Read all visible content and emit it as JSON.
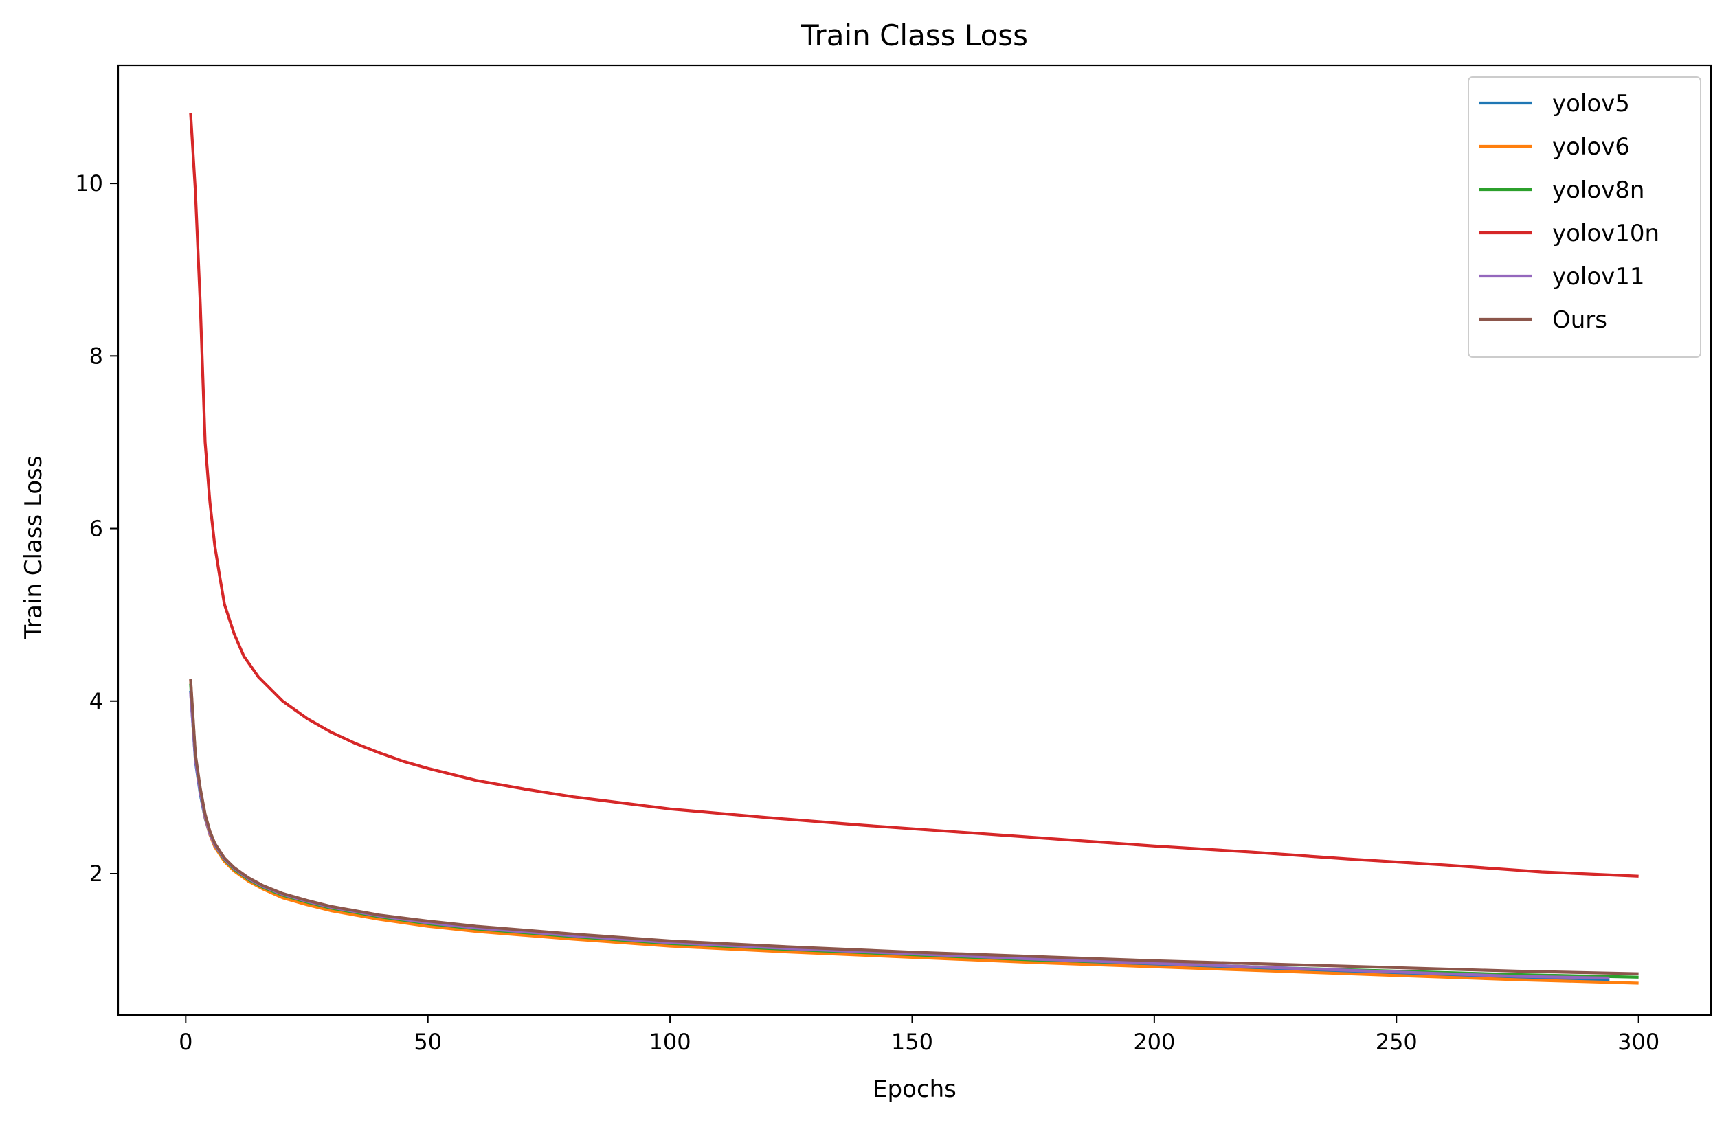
{
  "chart_data": {
    "type": "line",
    "title": "Train Class Loss",
    "xlabel": "Epochs",
    "ylabel": "Train Class Loss",
    "xlim": [
      -13.95,
      314.95
    ],
    "ylim": [
      0.36,
      11.37
    ],
    "xticks": [
      0,
      50,
      100,
      150,
      200,
      250,
      300
    ],
    "yticks": [
      2,
      4,
      6,
      8,
      10
    ],
    "grid": false,
    "legend_position": "top-right",
    "series": [
      {
        "name": "yolov5",
        "color": "#1f77b4",
        "x": [
          1,
          2,
          3,
          4,
          5,
          6,
          8,
          10,
          13,
          16,
          20,
          25,
          30,
          40,
          50,
          60,
          80,
          100,
          125,
          150,
          175,
          200,
          225,
          250,
          275,
          294
        ],
        "y": [
          4.12,
          3.3,
          2.92,
          2.64,
          2.45,
          2.32,
          2.16,
          2.05,
          1.94,
          1.85,
          1.76,
          1.68,
          1.61,
          1.51,
          1.43,
          1.37,
          1.28,
          1.2,
          1.13,
          1.06,
          1.0,
          0.95,
          0.9,
          0.85,
          0.8,
          0.77
        ]
      },
      {
        "name": "yolov6",
        "color": "#ff7f0e",
        "x": [
          1,
          2,
          3,
          4,
          5,
          6,
          8,
          10,
          13,
          16,
          20,
          25,
          30,
          40,
          50,
          60,
          80,
          100,
          125,
          150,
          175,
          200,
          225,
          250,
          275,
          300
        ],
        "y": [
          4.25,
          3.35,
          2.95,
          2.65,
          2.45,
          2.31,
          2.14,
          2.03,
          1.91,
          1.82,
          1.72,
          1.64,
          1.57,
          1.47,
          1.39,
          1.33,
          1.24,
          1.16,
          1.09,
          1.03,
          0.97,
          0.92,
          0.87,
          0.82,
          0.77,
          0.73
        ]
      },
      {
        "name": "yolov8n",
        "color": "#2ca02c",
        "x": [
          1,
          2,
          3,
          4,
          5,
          6,
          8,
          10,
          13,
          16,
          20,
          25,
          30,
          40,
          50,
          60,
          80,
          100,
          125,
          150,
          175,
          200,
          225,
          250,
          275,
          300
        ],
        "y": [
          4.2,
          3.36,
          2.97,
          2.67,
          2.47,
          2.33,
          2.16,
          2.05,
          1.93,
          1.84,
          1.75,
          1.67,
          1.6,
          1.5,
          1.42,
          1.36,
          1.27,
          1.19,
          1.12,
          1.06,
          1.0,
          0.96,
          0.91,
          0.87,
          0.83,
          0.8
        ]
      },
      {
        "name": "yolov10n",
        "color": "#d62728",
        "x": [
          1,
          2,
          3,
          4,
          5,
          6,
          7,
          8,
          10,
          12,
          15,
          20,
          25,
          30,
          35,
          40,
          45,
          50,
          60,
          70,
          80,
          90,
          100,
          120,
          140,
          160,
          180,
          200,
          220,
          240,
          260,
          280,
          300
        ],
        "y": [
          10.82,
          9.9,
          8.6,
          7.0,
          6.3,
          5.8,
          5.45,
          5.12,
          4.78,
          4.52,
          4.28,
          4.0,
          3.8,
          3.64,
          3.51,
          3.4,
          3.3,
          3.22,
          3.08,
          2.98,
          2.89,
          2.82,
          2.75,
          2.65,
          2.56,
          2.48,
          2.4,
          2.32,
          2.25,
          2.17,
          2.1,
          2.02,
          1.97
        ]
      },
      {
        "name": "yolov11",
        "color": "#9467bd",
        "x": [
          1,
          2,
          3,
          4,
          5,
          6,
          8,
          10,
          13,
          16,
          20,
          25,
          30,
          40,
          50,
          60,
          80,
          100,
          125,
          150,
          175,
          200,
          225,
          250,
          275,
          294
        ],
        "y": [
          4.1,
          3.32,
          2.94,
          2.66,
          2.46,
          2.33,
          2.17,
          2.06,
          1.94,
          1.85,
          1.76,
          1.68,
          1.61,
          1.51,
          1.43,
          1.37,
          1.28,
          1.2,
          1.13,
          1.07,
          1.01,
          0.96,
          0.91,
          0.86,
          0.81,
          0.79
        ]
      },
      {
        "name": "Ours",
        "color": "#8c564b",
        "x": [
          1,
          2,
          3,
          4,
          5,
          6,
          8,
          10,
          13,
          16,
          20,
          25,
          30,
          40,
          50,
          60,
          80,
          100,
          125,
          150,
          175,
          200,
          225,
          250,
          275,
          300
        ],
        "y": [
          4.26,
          3.38,
          2.99,
          2.69,
          2.49,
          2.35,
          2.18,
          2.07,
          1.95,
          1.86,
          1.77,
          1.69,
          1.62,
          1.52,
          1.45,
          1.39,
          1.3,
          1.22,
          1.15,
          1.09,
          1.04,
          0.99,
          0.95,
          0.91,
          0.87,
          0.84
        ]
      }
    ]
  }
}
